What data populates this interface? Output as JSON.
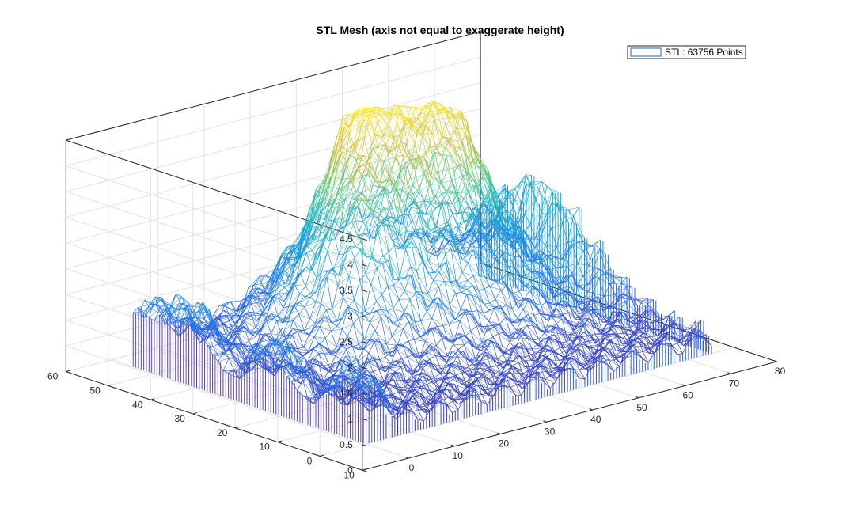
{
  "chart_data": {
    "type": "surface3d-mesh",
    "title": "STL Mesh (axis not equal to exaggerate height)",
    "legend": {
      "placement": "top-right",
      "entries": [
        "STL: 63756 Points"
      ]
    },
    "grid": true,
    "colormap": "parula",
    "x_axis": {
      "range": [
        -10,
        80
      ],
      "ticks": [
        "0",
        "10",
        "20",
        "30",
        "40",
        "50",
        "60",
        "70",
        "80"
      ]
    },
    "y_axis": {
      "range": [
        -10,
        60
      ],
      "ticks": [
        "-10",
        "0",
        "10",
        "20",
        "30",
        "40",
        "50",
        "60"
      ]
    },
    "z_axis": {
      "range": [
        0,
        4.5
      ],
      "ticks": [
        "0",
        "0.5",
        "1",
        "1.5",
        "2",
        "2.5",
        "3",
        "3.5",
        "4",
        "4.5"
      ]
    },
    "surface_extent": {
      "x": [
        0,
        75
      ],
      "y": [
        0,
        55
      ],
      "z": [
        0,
        4.3
      ]
    },
    "peak_regions": [
      {
        "x": 40,
        "y": 45,
        "z": 4.3
      },
      {
        "x": 55,
        "y": 40,
        "z": 4.1
      },
      {
        "x": 30,
        "y": 35,
        "z": 3.7
      },
      {
        "x": 73,
        "y": 50,
        "z": 2.6
      },
      {
        "x": 2,
        "y": 52,
        "z": 1.5
      }
    ],
    "skirt_base": 0,
    "colors": {
      "low": "#3d1f9b",
      "mid": "#1f8ff0",
      "high": "#fde725"
    }
  }
}
